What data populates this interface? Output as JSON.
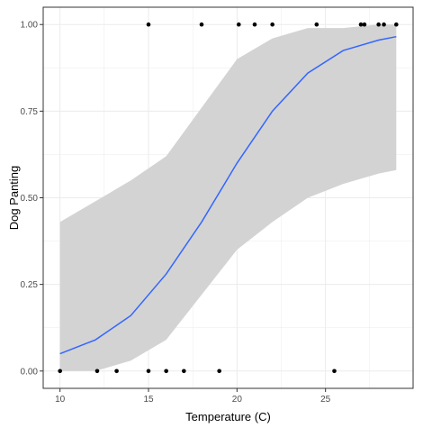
{
  "chart_data": {
    "type": "scatter",
    "xlabel": "Temperature (C)",
    "ylabel": "Dog Panting",
    "xlim": [
      9.05,
      29.95
    ],
    "ylim": [
      -0.05,
      1.05
    ],
    "x_ticks": [
      10,
      15,
      20,
      25
    ],
    "y_ticks": [
      0.0,
      0.25,
      0.5,
      0.75,
      1.0
    ],
    "x_tick_labels": [
      "10",
      "15",
      "20",
      "25"
    ],
    "y_tick_labels": [
      "0.00",
      "0.25",
      "0.50",
      "0.75",
      "1.00"
    ],
    "grid": true,
    "points": {
      "x": [
        10,
        12.1,
        13.2,
        15,
        16,
        17,
        19,
        25.5,
        15,
        18,
        20.1,
        21,
        22,
        24.5,
        27,
        27.2,
        28,
        28.3,
        29
      ],
      "y": [
        0,
        0,
        0,
        0,
        0,
        0,
        0,
        0,
        1,
        1,
        1,
        1,
        1,
        1,
        1,
        1,
        1,
        1,
        1
      ]
    },
    "fit_line": {
      "x": [
        10,
        12,
        14,
        16,
        18,
        20,
        22,
        24,
        26,
        28,
        29
      ],
      "y": [
        0.05,
        0.09,
        0.16,
        0.28,
        0.43,
        0.6,
        0.75,
        0.86,
        0.925,
        0.955,
        0.965
      ]
    },
    "confidence_band": {
      "x": [
        10,
        12,
        14,
        16,
        18,
        20,
        22,
        24,
        26,
        28,
        29
      ],
      "lower": [
        0.0,
        0.0,
        0.03,
        0.09,
        0.22,
        0.35,
        0.43,
        0.5,
        0.54,
        0.57,
        0.58
      ],
      "upper": [
        0.43,
        0.49,
        0.55,
        0.62,
        0.76,
        0.9,
        0.96,
        0.99,
        0.99,
        1.0,
        1.0
      ]
    },
    "colors": {
      "line": "#3366FF",
      "band": "#d3d3d3",
      "points": "#000000",
      "grid": "#ebebeb",
      "panel_border": "#333333"
    }
  }
}
